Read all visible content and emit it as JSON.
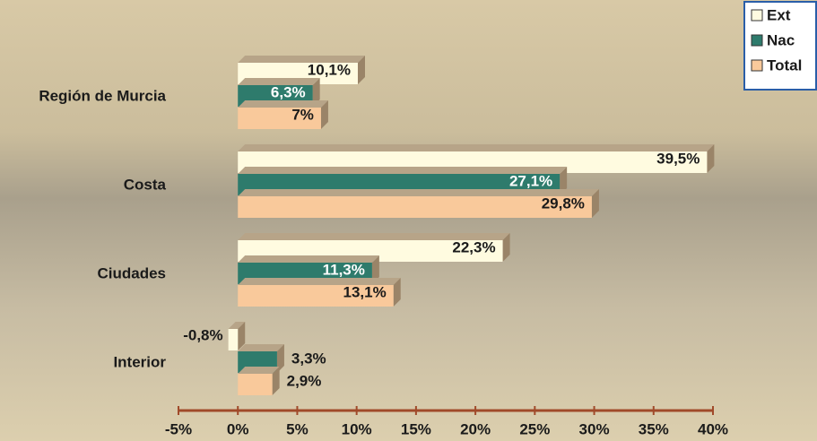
{
  "chart_data": {
    "type": "hbar3d",
    "categories": [
      "Región de Murcia",
      "Costa",
      "Ciudades",
      "Interior"
    ],
    "series": [
      {
        "name": "Ext",
        "color": "#fffbe0",
        "values": [
          10.1,
          39.5,
          22.3,
          -0.8
        ],
        "value_labels": [
          "10,1%",
          "39,5%",
          "22,3%",
          "-0,8%"
        ]
      },
      {
        "name": "Nac",
        "color": "#2e7b6c",
        "values": [
          6.3,
          27.1,
          11.3,
          3.3
        ],
        "value_labels": [
          "6,3%",
          "27,1%",
          "11,3%",
          "3,3%"
        ]
      },
      {
        "name": "Total",
        "color": "#f9c99b",
        "values": [
          7,
          29.8,
          13.1,
          2.9
        ],
        "value_labels": [
          "7%",
          "29,8%",
          "13,1%",
          "2,9%"
        ]
      }
    ],
    "xlim": [
      -5,
      40
    ],
    "xticks": [
      {
        "value": -5,
        "label": "-5%"
      },
      {
        "value": 0,
        "label": "0%"
      },
      {
        "value": 5,
        "label": "5%"
      },
      {
        "value": 10,
        "label": "10%"
      },
      {
        "value": 15,
        "label": "15%"
      },
      {
        "value": 20,
        "label": "20%"
      },
      {
        "value": 25,
        "label": "25%"
      },
      {
        "value": 30,
        "label": "30%"
      },
      {
        "value": 35,
        "label": "35%"
      },
      {
        "value": 40,
        "label": "40%"
      }
    ],
    "legend": "top-right"
  }
}
